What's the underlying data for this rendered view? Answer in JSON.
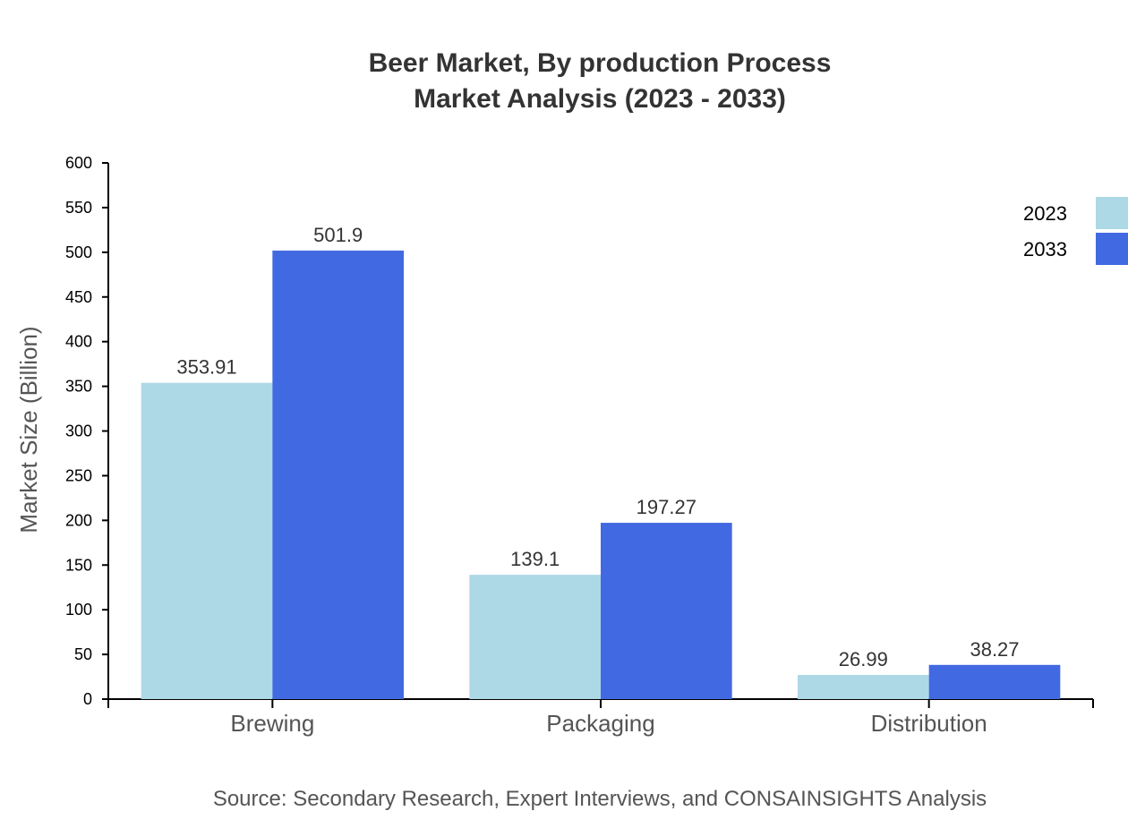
{
  "chart_data": {
    "type": "bar",
    "title": [
      "Beer Market, By production Process",
      "Market Analysis (2023 - 2033)"
    ],
    "xlabel": "",
    "ylabel": "Market Size (Billion)",
    "ylim": [
      0,
      600
    ],
    "yticks": [
      0,
      50,
      100,
      150,
      200,
      250,
      300,
      350,
      400,
      450,
      500,
      550,
      600
    ],
    "categories": [
      "Brewing",
      "Packaging",
      "Distribution"
    ],
    "series": [
      {
        "name": "2023",
        "color": "#add8e6",
        "values": [
          353.91,
          139.1,
          26.99
        ]
      },
      {
        "name": "2033",
        "color": "#4169e1",
        "values": [
          501.9,
          197.27,
          38.27
        ]
      }
    ],
    "legend": "top-right",
    "grid": false,
    "source": "Source: Secondary Research, Expert Interviews, and CONSAINSIGHTS Analysis"
  }
}
